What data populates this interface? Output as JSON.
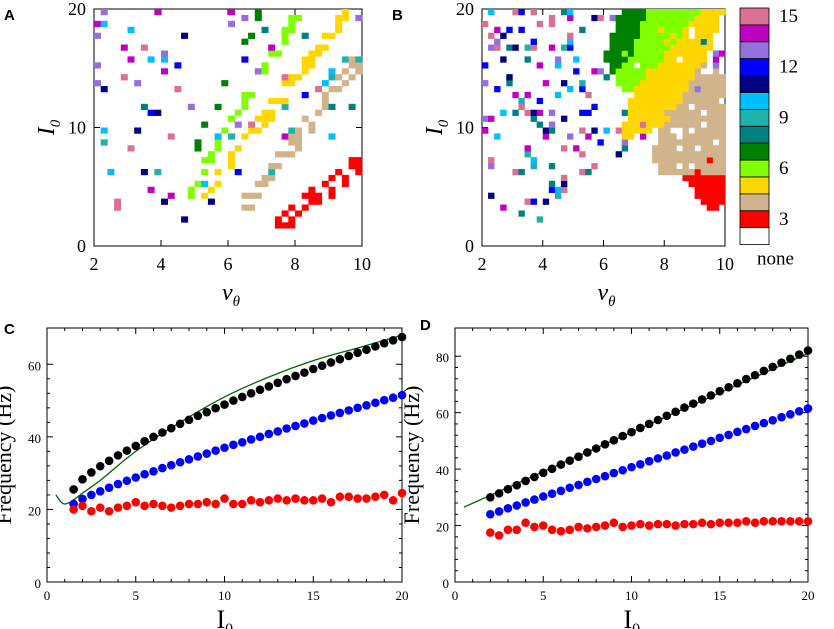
{
  "figure": {
    "panel_labels": [
      "A",
      "B",
      "C",
      "D"
    ]
  },
  "chart_data": [
    {
      "id": "A",
      "type": "heatmap",
      "title": "",
      "xlabel_sym": "ν",
      "xlabel_sub": "θ",
      "ylabel_sym": "I",
      "ylabel_sub": "0",
      "xlim": [
        2,
        10
      ],
      "ylim": [
        0,
        20
      ],
      "xticks": [
        2,
        4,
        6,
        8,
        10
      ],
      "yticks": [
        0,
        10,
        20
      ],
      "grid": false,
      "description_values": "category = number of clusters (3–15) per (nu_theta, I0) cell; white = none",
      "bands": [
        {
          "category": 3,
          "color": "#ff0000",
          "from": [
            7.5,
            1.8
          ],
          "to": [
            10,
            7.0
          ],
          "width": 0.35
        },
        {
          "category": 4,
          "color": "#d2b48c",
          "from": [
            6.4,
            3.0
          ],
          "to": [
            10,
            16.0
          ],
          "width": 0.35
        },
        {
          "category": 5,
          "color": "#ffd700",
          "from": [
            5.0,
            3.0
          ],
          "to": [
            9.6,
            20.0
          ],
          "width": 0.3
        },
        {
          "category": 6,
          "color": "#7fff00",
          "from": [
            4.8,
            4.4
          ],
          "to": [
            8.2,
            20.0
          ],
          "width": 0.25
        },
        {
          "category": 7,
          "color": "#008000",
          "from": [
            5.0,
            8.0
          ],
          "to": [
            7.0,
            20.0
          ],
          "width": 0.18
        }
      ]
    },
    {
      "id": "B",
      "type": "heatmap",
      "title": "",
      "xlabel_sym": "ν",
      "xlabel_sub": "θ",
      "ylabel_sym": "I",
      "ylabel_sub": "0",
      "xlim": [
        2,
        10
      ],
      "ylim": [
        0,
        20
      ],
      "xticks": [
        2,
        4,
        6,
        8,
        10
      ],
      "yticks": [
        0,
        10,
        20
      ],
      "grid": false,
      "regions": [
        {
          "category": 3,
          "color": "#ff0000",
          "poly": [
            [
              9.4,
              3.0
            ],
            [
              10,
              3.0
            ],
            [
              10,
              9.0
            ],
            [
              8.6,
              6.0
            ]
          ]
        },
        {
          "category": 4,
          "color": "#d2b48c",
          "poly": [
            [
              7.8,
              6.0
            ],
            [
              10,
              6.0
            ],
            [
              10,
              14.5
            ],
            [
              8.8,
              16.0
            ],
            [
              7.6,
              8.0
            ]
          ]
        },
        {
          "category": 5,
          "color": "#ffd700",
          "poly": [
            [
              6.6,
              9.0
            ],
            [
              8.0,
              10.0
            ],
            [
              9.6,
              17.0
            ],
            [
              10,
              20.0
            ],
            [
              8.2,
              20.0
            ],
            [
              6.8,
              12.0
            ]
          ]
        },
        {
          "category": 6,
          "color": "#7fff00",
          "poly": [
            [
              6.6,
              12.0
            ],
            [
              8.0,
              16.0
            ],
            [
              9.2,
              20.0
            ],
            [
              7.2,
              20.0
            ],
            [
              6.4,
              15.0
            ]
          ]
        },
        {
          "category": 7,
          "color": "#008000",
          "poly": [
            [
              6.2,
              14.0
            ],
            [
              6.9,
              16.0
            ],
            [
              7.4,
              20.0
            ],
            [
              6.6,
              20.0
            ],
            [
              6.0,
              16.0
            ]
          ]
        }
      ]
    },
    {
      "id": "C",
      "type": "scatter",
      "title": "",
      "xlabel_main": "I",
      "xlabel_sub": "0",
      "ylabel": "Frequency (Hz)",
      "xlim": [
        0,
        20
      ],
      "ylim": [
        0,
        70
      ],
      "xticks": [
        0,
        5,
        10,
        15,
        20
      ],
      "yticks": [
        0,
        20,
        40,
        60
      ],
      "grid": false,
      "series": [
        {
          "name": "black",
          "color": "#000000",
          "x_start": 1.5,
          "x_end": 20,
          "y_start": 25.5,
          "y_end": 67.5,
          "curve": 0.75
        },
        {
          "name": "blue",
          "color": "#0000ff",
          "x_start": 1.5,
          "x_end": 20,
          "y_start": 21.5,
          "y_end": 51.5,
          "curve": 0.85
        },
        {
          "name": "red",
          "color": "#ff0000",
          "x": [
            1.5,
            2.0,
            2.5,
            3.0,
            3.5,
            4.0,
            4.5,
            5.0,
            5.5,
            6.0,
            6.5,
            7.0,
            7.5,
            8.0,
            8.5,
            9.0,
            9.5,
            10.0,
            10.5,
            11.0,
            11.5,
            12.0,
            12.5,
            13.0,
            13.5,
            14.0,
            14.5,
            15.0,
            15.5,
            16.0,
            16.5,
            17.0,
            17.5,
            18.0,
            18.5,
            19.0,
            19.5,
            20.0
          ],
          "y": [
            20.0,
            21.0,
            19.5,
            20.5,
            19.5,
            20.5,
            21.0,
            22.0,
            21.0,
            21.5,
            21.0,
            20.5,
            21.0,
            21.5,
            21.5,
            22.0,
            21.5,
            23.0,
            21.5,
            21.5,
            22.5,
            22.0,
            22.5,
            23.0,
            22.5,
            23.0,
            22.5,
            22.5,
            23.0,
            22.0,
            23.5,
            23.5,
            23.0,
            23.0,
            23.5,
            24.0,
            22.5,
            24.5
          ]
        }
      ],
      "theory_line": {
        "color": "#006400",
        "x": [
          0.5,
          0.8,
          1.0,
          1.3,
          1.6,
          2.0,
          3.0,
          5.0,
          7.5,
          10.0,
          12.5,
          15.0,
          17.5,
          20.0
        ],
        "y": [
          24.0,
          22.0,
          21.5,
          22.0,
          23.0,
          24.5,
          28.0,
          36.0,
          44.0,
          51.0,
          56.5,
          61.0,
          64.5,
          68.0
        ]
      }
    },
    {
      "id": "D",
      "type": "scatter",
      "title": "",
      "xlabel_main": "I",
      "xlabel_sub": "0",
      "ylabel": "Frequency (Hz)",
      "xlim": [
        0,
        20
      ],
      "ylim": [
        0,
        90
      ],
      "xticks": [
        0,
        5,
        10,
        15,
        20
      ],
      "yticks": [
        0,
        20,
        40,
        60,
        80
      ],
      "grid": false,
      "series": [
        {
          "name": "black",
          "color": "#000000",
          "x_start": 2.0,
          "x_end": 20,
          "y_start": 30.0,
          "y_end": 82.0,
          "curve": 1.0
        },
        {
          "name": "blue",
          "color": "#0000ff",
          "x_start": 2.0,
          "x_end": 20,
          "y_start": 24.0,
          "y_end": 61.5,
          "curve": 1.0
        },
        {
          "name": "red",
          "color": "#ff0000",
          "x": [
            2.0,
            2.5,
            3.0,
            3.5,
            4.0,
            4.5,
            5.0,
            5.5,
            6.0,
            6.5,
            7.0,
            7.5,
            8.0,
            8.5,
            9.0,
            9.5,
            10.0,
            10.5,
            11.0,
            11.5,
            12.0,
            12.5,
            13.0,
            13.5,
            14.0,
            14.5,
            15.0,
            15.5,
            16.0,
            16.5,
            17.0,
            17.5,
            18.0,
            18.5,
            19.0,
            19.5,
            20.0
          ],
          "y": [
            17.5,
            16.5,
            18.5,
            18.5,
            21.0,
            19.5,
            20.0,
            18.5,
            18.0,
            18.5,
            19.5,
            19.0,
            19.5,
            20.0,
            21.0,
            19.5,
            20.0,
            20.5,
            20.0,
            20.5,
            20.5,
            20.0,
            20.5,
            20.5,
            21.0,
            20.5,
            21.0,
            21.0,
            21.0,
            21.5,
            21.0,
            21.5,
            21.5,
            21.5,
            21.5,
            21.5,
            21.5
          ]
        }
      ],
      "theory_line": {
        "color": "#006400",
        "x": [
          0.5,
          20.0
        ],
        "y": [
          26.5,
          81.0
        ]
      }
    }
  ],
  "colorbar": {
    "entries": [
      {
        "value": 15,
        "label": "15",
        "color": "#db7093"
      },
      {
        "value": 14,
        "label": "",
        "color": "#c000c0"
      },
      {
        "value": 13,
        "label": "",
        "color": "#9370db"
      },
      {
        "value": 12,
        "label": "12",
        "color": "#0000ff"
      },
      {
        "value": 11,
        "label": "",
        "color": "#000080"
      },
      {
        "value": 10,
        "label": "",
        "color": "#00bfff"
      },
      {
        "value": 9,
        "label": "9",
        "color": "#20b2aa"
      },
      {
        "value": 8,
        "label": "",
        "color": "#008080"
      },
      {
        "value": 7,
        "label": "",
        "color": "#008000"
      },
      {
        "value": 6,
        "label": "6",
        "color": "#7fff00"
      },
      {
        "value": 5,
        "label": "",
        "color": "#ffd700"
      },
      {
        "value": 4,
        "label": "",
        "color": "#d2b48c"
      },
      {
        "value": 3,
        "label": "3",
        "color": "#ff0000"
      },
      {
        "value": 0,
        "label": "none",
        "color": "#ffffff"
      }
    ]
  }
}
